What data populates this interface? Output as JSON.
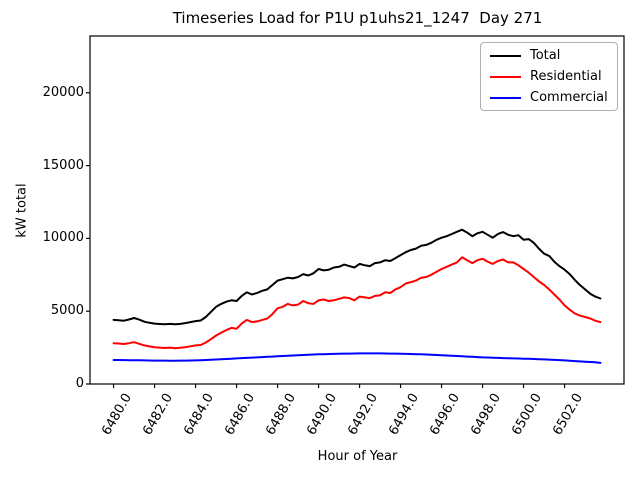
{
  "window": {
    "title": "Timeseries Load for P1U p1uhs21_1247  Day 271"
  },
  "chart_data": {
    "type": "line",
    "title": "Timeseries Load for P1U p1uhs21_1247  Day 271",
    "xlabel": "Hour of Year",
    "ylabel": "kW total",
    "xlim": [
      6478.85,
      6504.9
    ],
    "ylim": [
      0,
      23900
    ],
    "grid": false,
    "xtick_values": [
      6480,
      6482,
      6484,
      6486,
      6488,
      6490,
      6492,
      6494,
      6496,
      6498,
      6500,
      6502
    ],
    "xtick_labels": [
      "6480.0",
      "6482.0",
      "6484.0",
      "6486.0",
      "6488.0",
      "6490.0",
      "6492.0",
      "6494.0",
      "6496.0",
      "6498.0",
      "6500.0",
      "6502.0"
    ],
    "xtick_rotation_deg": 60,
    "ytick_values": [
      0,
      5000,
      10000,
      15000,
      20000
    ],
    "ytick_labels": [
      "0",
      "5000",
      "10000",
      "15000",
      "20000"
    ],
    "legend": {
      "position": "upper right",
      "labels": [
        "Total",
        "Residential",
        "Commercial"
      ]
    },
    "x": [
      6480.0,
      6480.25,
      6480.5,
      6480.75,
      6481.0,
      6481.25,
      6481.5,
      6481.75,
      6482.0,
      6482.25,
      6482.5,
      6482.75,
      6483.0,
      6483.25,
      6483.5,
      6483.75,
      6484.0,
      6484.25,
      6484.5,
      6484.75,
      6485.0,
      6485.25,
      6485.5,
      6485.75,
      6486.0,
      6486.25,
      6486.5,
      6486.75,
      6487.0,
      6487.25,
      6487.5,
      6487.75,
      6488.0,
      6488.25,
      6488.5,
      6488.75,
      6489.0,
      6489.25,
      6489.5,
      6489.75,
      6490.0,
      6490.25,
      6490.5,
      6490.75,
      6491.0,
      6491.25,
      6491.5,
      6491.75,
      6492.0,
      6492.25,
      6492.5,
      6492.75,
      6493.0,
      6493.25,
      6493.5,
      6493.75,
      6494.0,
      6494.25,
      6494.5,
      6494.75,
      6495.0,
      6495.25,
      6495.5,
      6495.75,
      6496.0,
      6496.25,
      6496.5,
      6496.75,
      6497.0,
      6497.25,
      6497.5,
      6497.75,
      6498.0,
      6498.25,
      6498.5,
      6498.75,
      6499.0,
      6499.25,
      6499.5,
      6499.75,
      6500.0,
      6500.25,
      6500.5,
      6500.75,
      6501.0,
      6501.25,
      6501.5,
      6501.75,
      6502.0,
      6502.25,
      6502.5,
      6502.75,
      6503.0,
      6503.25,
      6503.5,
      6503.75
    ],
    "series": [
      {
        "name": "Total",
        "color": "#000000",
        "values": [
          4400,
          4380,
          4350,
          4430,
          4530,
          4420,
          4280,
          4200,
          4150,
          4120,
          4100,
          4130,
          4100,
          4130,
          4180,
          4250,
          4320,
          4360,
          4600,
          4950,
          5300,
          5500,
          5650,
          5750,
          5700,
          6050,
          6300,
          6150,
          6250,
          6400,
          6500,
          6800,
          7100,
          7200,
          7300,
          7250,
          7350,
          7550,
          7450,
          7600,
          7900,
          7800,
          7850,
          8000,
          8050,
          8200,
          8100,
          8000,
          8250,
          8150,
          8100,
          8300,
          8350,
          8500,
          8450,
          8650,
          8850,
          9050,
          9200,
          9300,
          9500,
          9550,
          9700,
          9900,
          10050,
          10150,
          10300,
          10450,
          10600,
          10400,
          10150,
          10350,
          10450,
          10250,
          10050,
          10300,
          10430,
          10250,
          10150,
          10220,
          9900,
          9950,
          9700,
          9300,
          8950,
          8800,
          8400,
          8100,
          7850,
          7550,
          7150,
          6800,
          6500,
          6200,
          6000,
          5870
        ]
      },
      {
        "name": "Residential",
        "color": "#ff0000",
        "values": [
          2800,
          2780,
          2750,
          2800,
          2870,
          2760,
          2650,
          2580,
          2530,
          2500,
          2470,
          2500,
          2460,
          2490,
          2530,
          2590,
          2650,
          2680,
          2850,
          3080,
          3330,
          3520,
          3700,
          3850,
          3800,
          4150,
          4400,
          4250,
          4300,
          4400,
          4500,
          4800,
          5200,
          5300,
          5500,
          5400,
          5450,
          5700,
          5550,
          5500,
          5750,
          5800,
          5700,
          5750,
          5850,
          5950,
          5900,
          5750,
          6000,
          5950,
          5900,
          6050,
          6100,
          6300,
          6250,
          6500,
          6650,
          6900,
          7000,
          7100,
          7300,
          7350,
          7500,
          7700,
          7900,
          8050,
          8200,
          8350,
          8700,
          8500,
          8300,
          8500,
          8600,
          8400,
          8250,
          8450,
          8550,
          8350,
          8350,
          8150,
          7900,
          7650,
          7350,
          7050,
          6800,
          6500,
          6150,
          5800,
          5400,
          5100,
          4850,
          4700,
          4600,
          4500,
          4350,
          4250
        ]
      },
      {
        "name": "Commercial",
        "color": "#0000ff",
        "values": [
          1650,
          1645,
          1640,
          1635,
          1630,
          1625,
          1620,
          1615,
          1610,
          1607,
          1605,
          1602,
          1600,
          1605,
          1610,
          1615,
          1620,
          1635,
          1650,
          1665,
          1680,
          1700,
          1720,
          1740,
          1760,
          1778,
          1795,
          1813,
          1830,
          1848,
          1865,
          1883,
          1900,
          1920,
          1940,
          1960,
          1980,
          1995,
          2010,
          2025,
          2040,
          2050,
          2060,
          2070,
          2080,
          2085,
          2090,
          2095,
          2100,
          2100,
          2100,
          2100,
          2100,
          2095,
          2090,
          2085,
          2080,
          2070,
          2060,
          2050,
          2040,
          2025,
          2010,
          1995,
          1980,
          1960,
          1940,
          1920,
          1900,
          1883,
          1865,
          1848,
          1830,
          1818,
          1805,
          1793,
          1780,
          1770,
          1760,
          1750,
          1740,
          1728,
          1715,
          1703,
          1690,
          1673,
          1655,
          1638,
          1620,
          1598,
          1575,
          1553,
          1530,
          1510,
          1490,
          1450
        ]
      }
    ]
  }
}
